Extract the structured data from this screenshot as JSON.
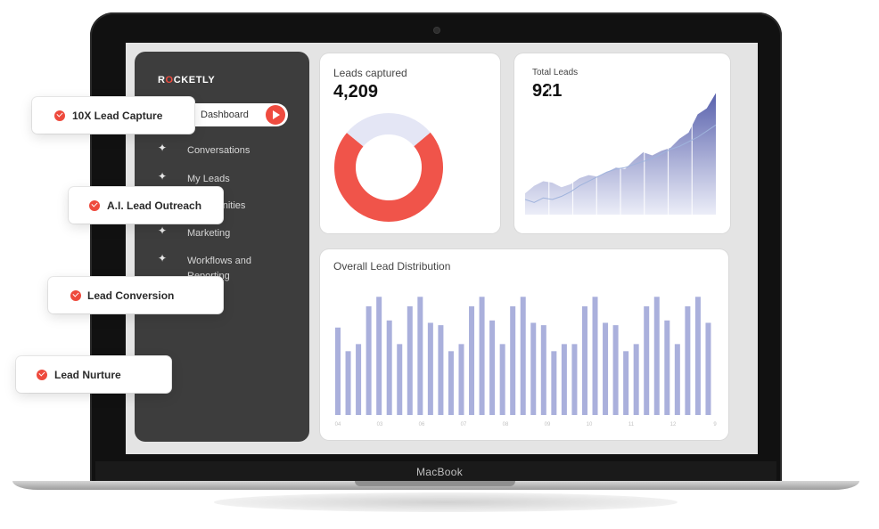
{
  "brand": {
    "logo_prefix": "R",
    "logo_accent": "O",
    "logo_rest": "CKETLY",
    "accent_color": "#ef4b3f"
  },
  "device": {
    "label": "MacBook"
  },
  "sidebar": {
    "active_item": {
      "label": "Dashboard",
      "icon": "play-icon"
    },
    "items": [
      {
        "label": "Conversations",
        "icon": "sparkle-icon"
      },
      {
        "label": "My Leads",
        "icon": "sparkle-icon"
      },
      {
        "label": "Opportunities",
        "icon": "sparkle-icon"
      },
      {
        "label": "Marketing",
        "icon": "sparkle-icon"
      },
      {
        "label": "Workflows and",
        "label2": "Reporting",
        "icon": "sparkle-icon"
      }
    ]
  },
  "leads_captured": {
    "title": "Leads captured",
    "value": "4,209",
    "chart_data": {
      "type": "pie",
      "slices": [
        {
          "value": 0.72,
          "color": "#f0544a"
        },
        {
          "value": 0.28,
          "color": "#e4e6f5"
        }
      ]
    }
  },
  "total_leads": {
    "title": "Total Leads",
    "value": "921",
    "chart_data": {
      "type": "area",
      "x": [
        0,
        1,
        2,
        3,
        4,
        5,
        6,
        7,
        8,
        9,
        10,
        11,
        12,
        13,
        14,
        15,
        16,
        17,
        18,
        19,
        20,
        21
      ],
      "series": [
        {
          "values": [
            28,
            38,
            44,
            42,
            36,
            40,
            48,
            52,
            50,
            56,
            62,
            60,
            72,
            82,
            78,
            84,
            88,
            100,
            108,
            132,
            140,
            160
          ],
          "color": "#5a62b0"
        },
        {
          "values": [
            20,
            16,
            22,
            20,
            24,
            30,
            38,
            44,
            50,
            56,
            60,
            62,
            66,
            70,
            74,
            80,
            86,
            90,
            96,
            102,
            110,
            118
          ],
          "color": "#9fb3dc"
        }
      ],
      "ylim": [
        0,
        170
      ]
    }
  },
  "distribution": {
    "title": "Overall Lead Distribution",
    "chart_data": {
      "type": "bar",
      "values": [
        74,
        54,
        60,
        92,
        100,
        80,
        60,
        92,
        100,
        78,
        76,
        54,
        60,
        92,
        100,
        80,
        60,
        92,
        100,
        78,
        76,
        54,
        60,
        60,
        92,
        100,
        78,
        76,
        54,
        60,
        92,
        100,
        80,
        60,
        92,
        100,
        78
      ],
      "x_tick_labels": [
        "04",
        "03",
        "06",
        "07",
        "08",
        "09",
        "10",
        "11",
        "12",
        "9"
      ],
      "color": "#aab0dc",
      "ylim": [
        0,
        110
      ]
    }
  },
  "features": [
    {
      "label": "10X Lead Capture"
    },
    {
      "label": "A.I. Lead Outreach"
    },
    {
      "label": "Lead Conversion"
    },
    {
      "label": "Lead Nurture"
    }
  ]
}
